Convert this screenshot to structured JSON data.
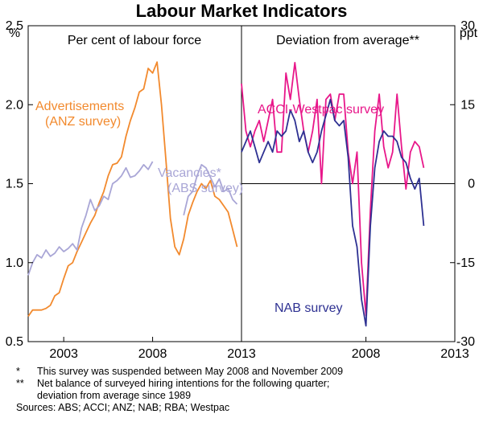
{
  "chart_data": {
    "type": "line",
    "title": "Labour Market Indicators",
    "panels": [
      {
        "subtitle": "Per cent of labour force",
        "unit": "%",
        "ylim": [
          0.5,
          2.5
        ],
        "yticks": [
          "0.5",
          "1.0",
          "1.5",
          "2.0",
          "2.5"
        ],
        "xlim": [
          2001.0,
          2013.0
        ],
        "xticks": [
          "2003",
          "2008",
          "2013"
        ],
        "series": [
          {
            "name": "Advertisements (ANZ survey)",
            "name_lines": [
              "Advertisements",
              "(ANZ survey)"
            ],
            "color": "#f28a2e",
            "points": [
              [
                2001.0,
                0.66
              ],
              [
                2001.25,
                0.7
              ],
              [
                2001.5,
                0.7
              ],
              [
                2001.75,
                0.7
              ],
              [
                2002.0,
                0.71
              ],
              [
                2002.25,
                0.73
              ],
              [
                2002.5,
                0.79
              ],
              [
                2002.75,
                0.81
              ],
              [
                2003.0,
                0.9
              ],
              [
                2003.25,
                0.98
              ],
              [
                2003.5,
                1.0
              ],
              [
                2003.75,
                1.07
              ],
              [
                2004.0,
                1.13
              ],
              [
                2004.25,
                1.19
              ],
              [
                2004.5,
                1.25
              ],
              [
                2004.75,
                1.3
              ],
              [
                2005.0,
                1.38
              ],
              [
                2005.25,
                1.45
              ],
              [
                2005.5,
                1.55
              ],
              [
                2005.75,
                1.62
              ],
              [
                2006.0,
                1.63
              ],
              [
                2006.25,
                1.67
              ],
              [
                2006.5,
                1.8
              ],
              [
                2006.75,
                1.9
              ],
              [
                2007.0,
                1.98
              ],
              [
                2007.25,
                2.08
              ],
              [
                2007.5,
                2.1
              ],
              [
                2007.75,
                2.23
              ],
              [
                2008.0,
                2.2
              ],
              [
                2008.25,
                2.27
              ],
              [
                2008.5,
                2.0
              ],
              [
                2008.75,
                1.65
              ],
              [
                2009.0,
                1.28
              ],
              [
                2009.25,
                1.1
              ],
              [
                2009.5,
                1.05
              ],
              [
                2009.75,
                1.15
              ],
              [
                2010.0,
                1.3
              ],
              [
                2010.25,
                1.38
              ],
              [
                2010.5,
                1.45
              ],
              [
                2010.75,
                1.5
              ],
              [
                2011.0,
                1.47
              ],
              [
                2011.25,
                1.52
              ],
              [
                2011.5,
                1.42
              ],
              [
                2011.75,
                1.4
              ],
              [
                2012.0,
                1.36
              ],
              [
                2012.25,
                1.32
              ],
              [
                2012.5,
                1.21
              ],
              [
                2012.75,
                1.1
              ]
            ]
          },
          {
            "name": "Vacancies* (ABS survey)",
            "name_lines": [
              "Vacancies*",
              "(ABS survey)"
            ],
            "color": "#a9a6d6",
            "segments": [
              [
                [
                  2001.0,
                  0.92
                ],
                [
                  2001.25,
                  1.0
                ],
                [
                  2001.5,
                  1.05
                ],
                [
                  2001.75,
                  1.03
                ],
                [
                  2002.0,
                  1.08
                ],
                [
                  2002.25,
                  1.04
                ],
                [
                  2002.5,
                  1.06
                ],
                [
                  2002.75,
                  1.1
                ],
                [
                  2003.0,
                  1.07
                ],
                [
                  2003.25,
                  1.09
                ],
                [
                  2003.5,
                  1.12
                ],
                [
                  2003.75,
                  1.08
                ],
                [
                  2004.0,
                  1.22
                ],
                [
                  2004.25,
                  1.3
                ],
                [
                  2004.5,
                  1.4
                ],
                [
                  2004.75,
                  1.33
                ],
                [
                  2005.0,
                  1.36
                ],
                [
                  2005.25,
                  1.42
                ],
                [
                  2005.5,
                  1.4
                ],
                [
                  2005.75,
                  1.5
                ],
                [
                  2006.0,
                  1.52
                ],
                [
                  2006.25,
                  1.55
                ],
                [
                  2006.5,
                  1.6
                ],
                [
                  2006.75,
                  1.54
                ],
                [
                  2007.0,
                  1.55
                ],
                [
                  2007.25,
                  1.58
                ],
                [
                  2007.5,
                  1.62
                ],
                [
                  2007.75,
                  1.59
                ],
                [
                  2008.0,
                  1.64
                ]
              ],
              [
                [
                  2009.75,
                  1.3
                ],
                [
                  2010.0,
                  1.42
                ],
                [
                  2010.25,
                  1.45
                ],
                [
                  2010.5,
                  1.55
                ],
                [
                  2010.75,
                  1.62
                ],
                [
                  2011.0,
                  1.6
                ],
                [
                  2011.25,
                  1.54
                ],
                [
                  2011.5,
                  1.48
                ],
                [
                  2011.75,
                  1.53
                ],
                [
                  2012.0,
                  1.45
                ],
                [
                  2012.25,
                  1.47
                ],
                [
                  2012.5,
                  1.4
                ],
                [
                  2012.75,
                  1.37
                ]
              ]
            ]
          }
        ]
      },
      {
        "subtitle": "Deviation from average**",
        "unit": "ppt",
        "ylim": [
          -30,
          30
        ],
        "yticks": [
          "-30",
          "-15",
          "0",
          "15",
          "30"
        ],
        "xlim": [
          2001.0,
          2013.0
        ],
        "xticks": [
          "2008",
          "2013"
        ],
        "zero_line": true,
        "series": [
          {
            "name": "ACCI-Westpac survey",
            "name_lines": [
              "ACCI-Westpac survey"
            ],
            "color": "#e8178a",
            "points": [
              [
                2001.0,
                19
              ],
              [
                2001.25,
                10
              ],
              [
                2001.5,
                7
              ],
              [
                2001.75,
                10
              ],
              [
                2002.0,
                12
              ],
              [
                2002.25,
                8
              ],
              [
                2002.5,
                12
              ],
              [
                2002.75,
                16
              ],
              [
                2003.0,
                6
              ],
              [
                2003.25,
                6
              ],
              [
                2003.5,
                21
              ],
              [
                2003.75,
                16
              ],
              [
                2004.0,
                23
              ],
              [
                2004.25,
                16
              ],
              [
                2004.5,
                10
              ],
              [
                2004.75,
                6
              ],
              [
                2005.0,
                10
              ],
              [
                2005.25,
                16
              ],
              [
                2005.5,
                0
              ],
              [
                2005.75,
                16
              ],
              [
                2006.0,
                17
              ],
              [
                2006.25,
                12
              ],
              [
                2006.5,
                17
              ],
              [
                2006.75,
                17
              ],
              [
                2007.0,
                6
              ],
              [
                2007.25,
                0
              ],
              [
                2007.5,
                6
              ],
              [
                2007.75,
                -15
              ],
              [
                2008.0,
                -25
              ],
              [
                2008.25,
                -5
              ],
              [
                2008.5,
                10
              ],
              [
                2008.75,
                17
              ],
              [
                2009.0,
                7
              ],
              [
                2009.25,
                3
              ],
              [
                2009.5,
                6
              ],
              [
                2009.75,
                17
              ],
              [
                2010.0,
                7
              ],
              [
                2010.25,
                -1
              ],
              [
                2010.5,
                6
              ],
              [
                2010.75,
                8
              ],
              [
                2011.0,
                7
              ],
              [
                2011.25,
                3
              ]
            ]
          },
          {
            "name": "NAB survey",
            "name_lines": [
              "NAB survey"
            ],
            "color": "#2e3192",
            "points": [
              [
                2001.0,
                6
              ],
              [
                2001.25,
                8
              ],
              [
                2001.5,
                10
              ],
              [
                2001.75,
                7
              ],
              [
                2002.0,
                4
              ],
              [
                2002.25,
                6
              ],
              [
                2002.5,
                8
              ],
              [
                2002.75,
                6
              ],
              [
                2003.0,
                10
              ],
              [
                2003.25,
                9
              ],
              [
                2003.5,
                10
              ],
              [
                2003.75,
                14
              ],
              [
                2004.0,
                12
              ],
              [
                2004.25,
                8
              ],
              [
                2004.5,
                10
              ],
              [
                2004.75,
                6
              ],
              [
                2005.0,
                4
              ],
              [
                2005.25,
                6
              ],
              [
                2005.5,
                10
              ],
              [
                2005.75,
                13
              ],
              [
                2006.0,
                16
              ],
              [
                2006.25,
                12
              ],
              [
                2006.5,
                11
              ],
              [
                2006.75,
                12
              ],
              [
                2007.0,
                5
              ],
              [
                2007.25,
                -8
              ],
              [
                2007.5,
                -12
              ],
              [
                2007.75,
                -22
              ],
              [
                2008.0,
                -27
              ],
              [
                2008.25,
                -8
              ],
              [
                2008.5,
                3
              ],
              [
                2008.75,
                8
              ],
              [
                2009.0,
                10
              ],
              [
                2009.25,
                9
              ],
              [
                2009.5,
                9
              ],
              [
                2009.75,
                8
              ],
              [
                2010.0,
                5
              ],
              [
                2010.25,
                4
              ],
              [
                2010.5,
                1
              ],
              [
                2010.75,
                -1
              ],
              [
                2011.0,
                1
              ],
              [
                2011.25,
                -8
              ]
            ]
          }
        ]
      }
    ]
  },
  "footnotes": [
    {
      "mark": "*",
      "text": "This survey was suspended between May 2008 and November 2009"
    },
    {
      "mark": "**",
      "text": "Net balance of surveyed hiring intentions for the following quarter;"
    },
    {
      "mark": "",
      "text": "deviation from average since 1989"
    }
  ],
  "sources": "Sources: ABS; ACCI; ANZ; NAB; RBA; Westpac"
}
